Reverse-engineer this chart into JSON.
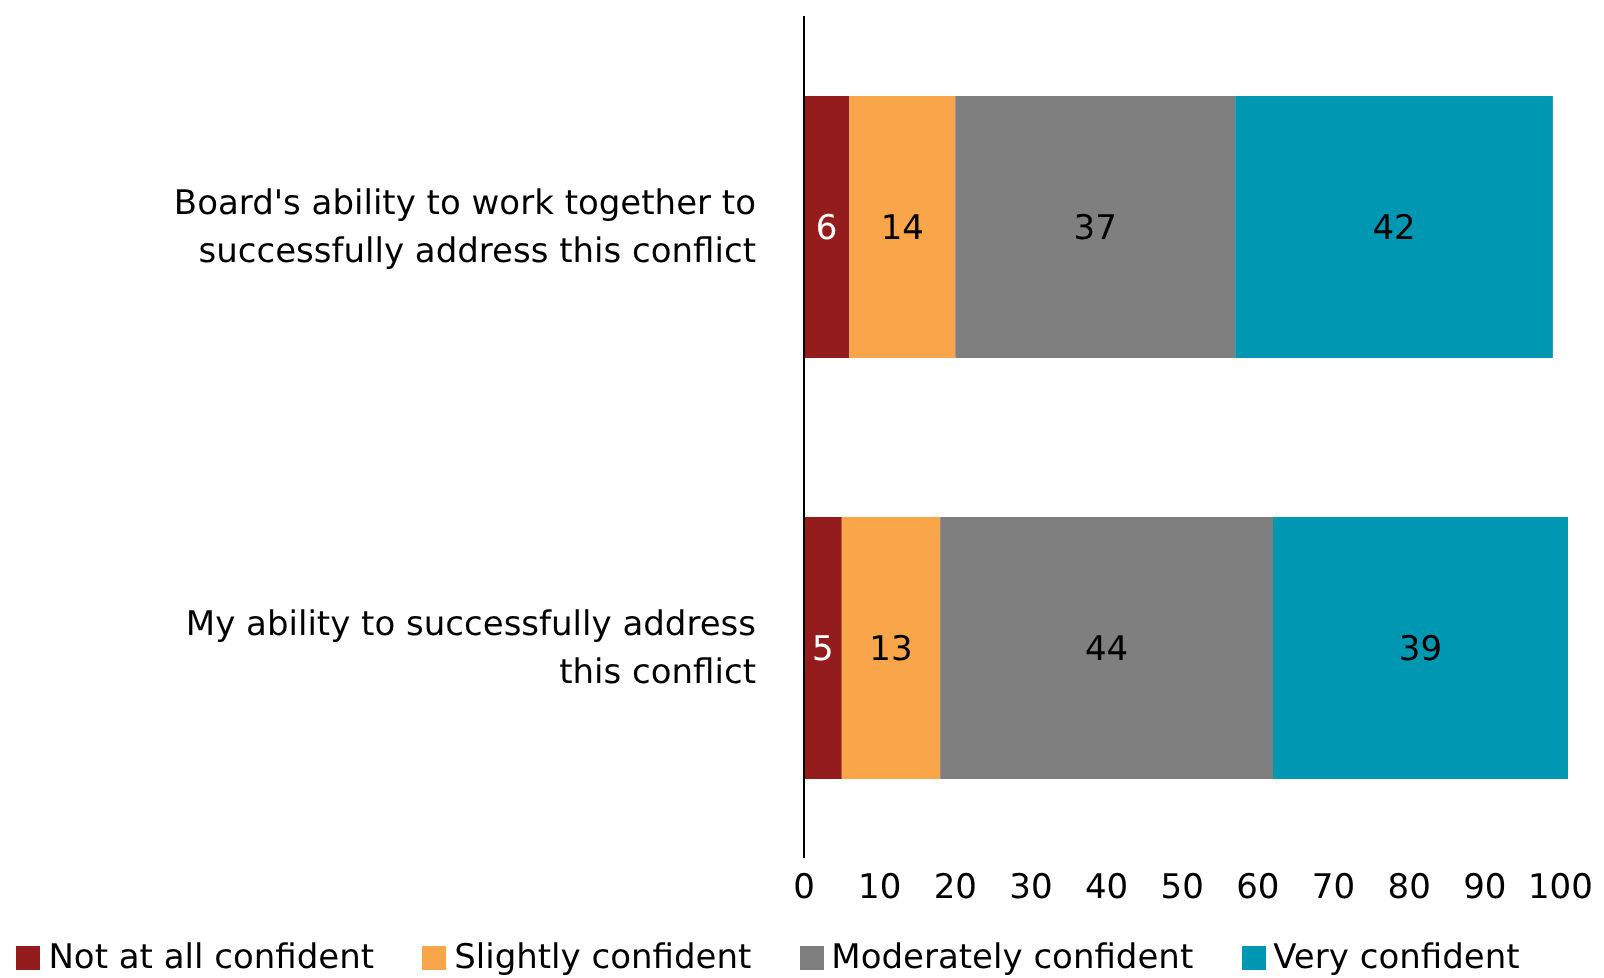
{
  "chart_data": {
    "type": "bar",
    "orientation": "horizontal",
    "stacked": true,
    "categories": [
      "Board's ability to work together to successfully address this conflict",
      "My ability to successfully address this conflict"
    ],
    "series": [
      {
        "name": "Not at all confident",
        "color": "#941c1c",
        "values": [
          6,
          5
        ]
      },
      {
        "name": "Slightly confident",
        "color": "#f9a54a",
        "values": [
          14,
          13
        ]
      },
      {
        "name": "Moderately confident",
        "color": "#7f7f7f",
        "values": [
          37,
          44
        ]
      },
      {
        "name": "Very confident",
        "color": "#0097b2",
        "values": [
          42,
          39
        ]
      }
    ],
    "xlim": [
      0,
      101
    ],
    "xticks": [
      0,
      10,
      20,
      30,
      40,
      50,
      60,
      70,
      80,
      90,
      100
    ],
    "data_labels": true,
    "grid": false,
    "legend": "bottom"
  }
}
